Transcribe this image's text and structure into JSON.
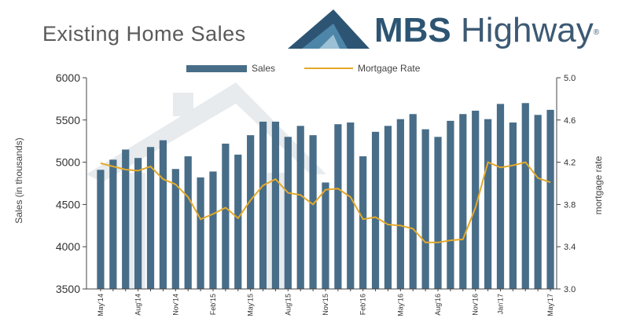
{
  "header": {
    "title": "Existing Home Sales",
    "brand_bold": "MBS",
    "brand_light": "Highway",
    "brand_reg": "®"
  },
  "colors": {
    "bar": "#486d88",
    "line": "#e3a92a",
    "axis": "#444444",
    "logo_dark": "#2d5573",
    "logo_light": "#4d86a8"
  },
  "chart_data": {
    "type": "bar",
    "title": "Existing Home Sales",
    "ylabel": "Sales (in thousands)",
    "y2label": "mortgage rate",
    "ylim": [
      3500,
      6000
    ],
    "y2lim": [
      3.0,
      5.0
    ],
    "yticks": [
      "6000",
      "5500",
      "5000",
      "4500",
      "4000",
      "3500"
    ],
    "y2ticks": [
      "5.0",
      "4.6",
      "4.2",
      "3.8",
      "3.4",
      "3.0"
    ],
    "legend": [
      "Sales",
      "Mortgage Rate"
    ],
    "legend_position": "top",
    "grid": false,
    "x_tick_labels": [
      {
        "i": 0,
        "label": "May'14"
      },
      {
        "i": 3,
        "label": "Aug'14"
      },
      {
        "i": 6,
        "label": "Nov'14"
      },
      {
        "i": 9,
        "label": "Feb'15"
      },
      {
        "i": 12,
        "label": "May'15"
      },
      {
        "i": 15,
        "label": "Aug'15"
      },
      {
        "i": 18,
        "label": "Nov'15"
      },
      {
        "i": 21,
        "label": "Feb'16"
      },
      {
        "i": 24,
        "label": "May'16"
      },
      {
        "i": 27,
        "label": "Aug'16"
      },
      {
        "i": 30,
        "label": "Nov'16"
      },
      {
        "i": 32,
        "label": "Jan'17"
      },
      {
        "i": 36,
        "label": "May'17"
      }
    ],
    "categories": [
      "May'14",
      "Jun'14",
      "Jul'14",
      "Aug'14",
      "Sep'14",
      "Oct'14",
      "Nov'14",
      "Dec'14",
      "Jan'15",
      "Feb'15",
      "Mar'15",
      "Apr'15",
      "May'15",
      "Jun'15",
      "Jul'15",
      "Aug'15",
      "Sep'15",
      "Oct'15",
      "Nov'15",
      "Dec'15",
      "Jan'16",
      "Feb'16",
      "Mar'16",
      "Apr'16",
      "May'16",
      "Jun'16",
      "Jul'16",
      "Aug'16",
      "Sep'16",
      "Oct'16",
      "Nov'16",
      "Dec'16",
      "Jan'17",
      "Feb'17",
      "Mar'17",
      "Apr'17",
      "May'17"
    ],
    "series": [
      {
        "name": "Sales",
        "type": "bar",
        "axis": "left",
        "values": [
          4910,
          5030,
          5150,
          5050,
          5180,
          5260,
          4920,
          5070,
          4820,
          4890,
          5220,
          5090,
          5320,
          5480,
          5480,
          5300,
          5430,
          5320,
          4760,
          5450,
          5470,
          5070,
          5360,
          5430,
          5510,
          5570,
          5390,
          5300,
          5490,
          5570,
          5610,
          5510,
          5690,
          5470,
          5700,
          5560,
          5620
        ]
      },
      {
        "name": "Mortgage Rate",
        "type": "line",
        "axis": "right",
        "values": [
          4.19,
          4.16,
          4.13,
          4.12,
          4.16,
          4.04,
          3.99,
          3.87,
          3.66,
          3.71,
          3.77,
          3.67,
          3.84,
          3.98,
          4.04,
          3.91,
          3.89,
          3.8,
          3.94,
          3.95,
          3.87,
          3.66,
          3.68,
          3.61,
          3.6,
          3.57,
          3.44,
          3.44,
          3.46,
          3.47,
          3.77,
          4.2,
          4.15,
          4.17,
          4.2,
          4.05,
          4.01
        ]
      }
    ]
  }
}
